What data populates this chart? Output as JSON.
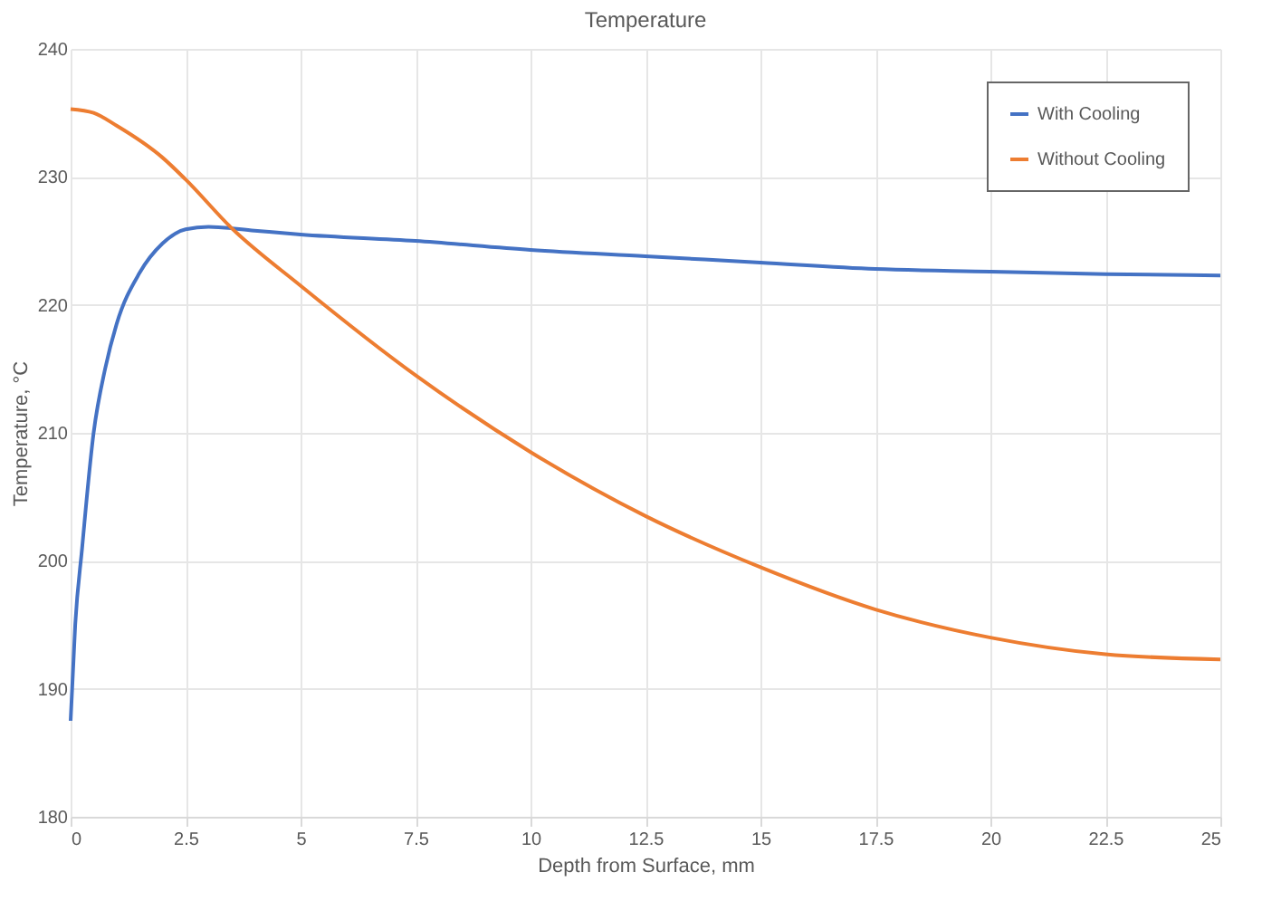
{
  "chart_data": {
    "type": "line",
    "title": "Temperature",
    "xlabel": "Depth from Surface, mm",
    "ylabel": "Temperature, °C",
    "xlim": [
      0,
      25
    ],
    "xticks": [
      0,
      2.5,
      5,
      7.5,
      10,
      12.5,
      15,
      17.5,
      20,
      22.5,
      25
    ],
    "ylim": [
      180,
      240
    ],
    "yticks": [
      180,
      190,
      200,
      210,
      220,
      230,
      240
    ],
    "grid": true,
    "legend": "top right",
    "marker": "none",
    "line_style": "solid",
    "series": [
      {
        "name": "With Cooling",
        "color": "#4472c4",
        "x": [
          0,
          0.1,
          0.25,
          0.5,
          0.75,
          1,
          1.5,
          2,
          2.5,
          3,
          4,
          5,
          7.5,
          10,
          12.5,
          15,
          17.5,
          20,
          22.5,
          25
        ],
        "values": [
          187.5,
          195,
          201,
          210,
          215,
          218.5,
          222.5,
          224.8,
          225.9,
          226.1,
          225.8,
          225.5,
          225,
          224.3,
          223.8,
          223.3,
          222.8,
          222.6,
          222.4,
          222.3
        ]
      },
      {
        "name": "Without Cooling",
        "color": "#ed7d31",
        "x": [
          0,
          0.5,
          1,
          2,
          2.5,
          3.5,
          5,
          7.5,
          10,
          12.5,
          15,
          17.5,
          20,
          22.5,
          25
        ],
        "values": [
          235.3,
          235,
          234,
          231.5,
          229.8,
          226,
          221.5,
          214.5,
          208.5,
          203.5,
          199.5,
          196.2,
          194,
          192.7,
          192.3
        ]
      }
    ]
  }
}
